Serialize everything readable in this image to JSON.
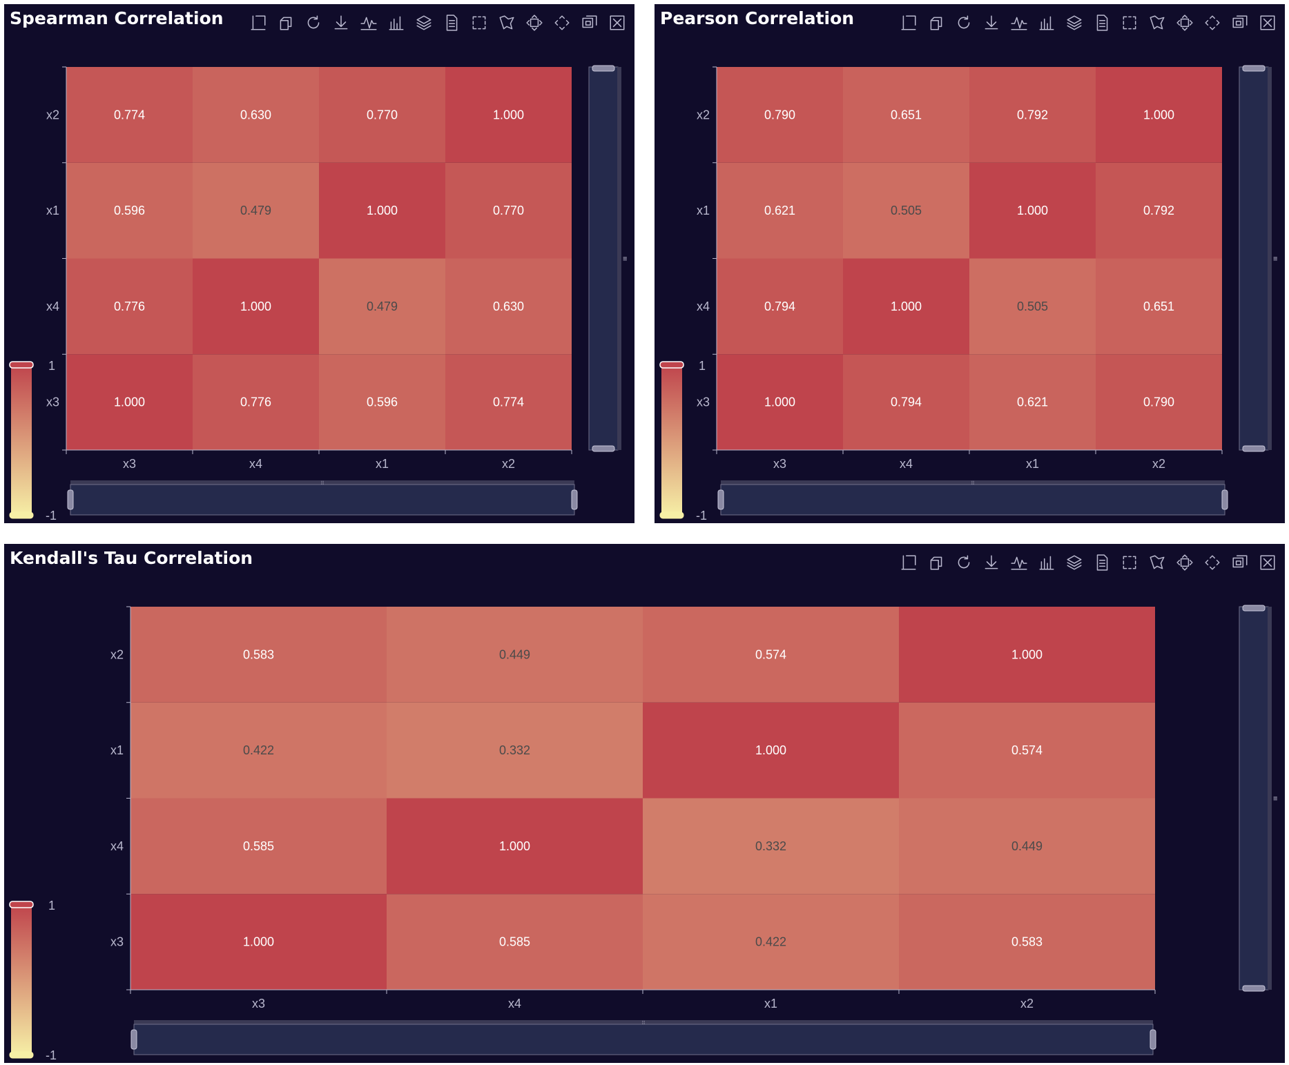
{
  "colors": {
    "background": "#100c2a",
    "scale_low": "#f6efa6",
    "scale_high": "#bf444c",
    "axis": "#b9b8ce",
    "slider_fill": "#252a4c",
    "slider_border": "#71708a"
  },
  "toolbar": {
    "icons": [
      "zoom-icon",
      "zoom-reset-icon",
      "restore-icon",
      "save-image-icon",
      "line-chart-icon",
      "bar-chart-icon",
      "stack-icon",
      "data-view-icon",
      "rect-select-icon",
      "polygon-select-icon",
      "keep-selection-icon",
      "clear-selection-icon",
      "tiled-icon",
      "close-icon"
    ]
  },
  "chart_data": [
    {
      "type": "heatmap",
      "title": "Spearman Correlation",
      "x_categories": [
        "x3",
        "x4",
        "x1",
        "x2"
      ],
      "y_categories": [
        "x3",
        "x4",
        "x1",
        "x2"
      ],
      "values": [
        [
          1.0,
          0.776,
          0.596,
          0.774
        ],
        [
          0.776,
          1.0,
          0.479,
          0.63
        ],
        [
          0.596,
          0.479,
          1.0,
          0.77
        ],
        [
          0.774,
          0.63,
          0.77,
          1.0
        ]
      ],
      "labels": [
        [
          "1.000",
          "0.776",
          "0.596",
          "0.774"
        ],
        [
          "0.776",
          "1.000",
          "0.479",
          "0.630"
        ],
        [
          "0.596",
          "0.479",
          "1.000",
          "0.770"
        ],
        [
          "0.774",
          "0.630",
          "0.770",
          "1.000"
        ]
      ],
      "visual_map": {
        "min": -1,
        "max": 1,
        "min_label": "-1",
        "max_label": "1"
      }
    },
    {
      "type": "heatmap",
      "title": "Pearson Correlation",
      "x_categories": [
        "x3",
        "x4",
        "x1",
        "x2"
      ],
      "y_categories": [
        "x3",
        "x4",
        "x1",
        "x2"
      ],
      "values": [
        [
          1.0,
          0.794,
          0.621,
          0.79
        ],
        [
          0.794,
          1.0,
          0.505,
          0.651
        ],
        [
          0.621,
          0.505,
          1.0,
          0.792
        ],
        [
          0.79,
          0.651,
          0.792,
          1.0
        ]
      ],
      "labels": [
        [
          "1.000",
          "0.794",
          "0.621",
          "0.790"
        ],
        [
          "0.794",
          "1.000",
          "0.505",
          "0.651"
        ],
        [
          "0.621",
          "0.505",
          "1.000",
          "0.792"
        ],
        [
          "0.790",
          "0.651",
          "0.792",
          "1.000"
        ]
      ],
      "visual_map": {
        "min": -1,
        "max": 1,
        "min_label": "-1",
        "max_label": "1"
      }
    },
    {
      "type": "heatmap",
      "title": "Kendall's Tau Correlation",
      "x_categories": [
        "x3",
        "x4",
        "x1",
        "x2"
      ],
      "y_categories": [
        "x3",
        "x4",
        "x1",
        "x2"
      ],
      "values": [
        [
          1.0,
          0.585,
          0.422,
          0.583
        ],
        [
          0.585,
          1.0,
          0.332,
          0.449
        ],
        [
          0.422,
          0.332,
          1.0,
          0.574
        ],
        [
          0.583,
          0.449,
          0.574,
          1.0
        ]
      ],
      "labels": [
        [
          "1.000",
          "0.585",
          "0.422",
          "0.583"
        ],
        [
          "0.585",
          "1.000",
          "0.332",
          "0.449"
        ],
        [
          "0.422",
          "0.332",
          "1.000",
          "0.574"
        ],
        [
          "0.583",
          "0.449",
          "0.574",
          "1.000"
        ]
      ],
      "visual_map": {
        "min": -1,
        "max": 1,
        "min_label": "-1",
        "max_label": "1"
      }
    }
  ]
}
